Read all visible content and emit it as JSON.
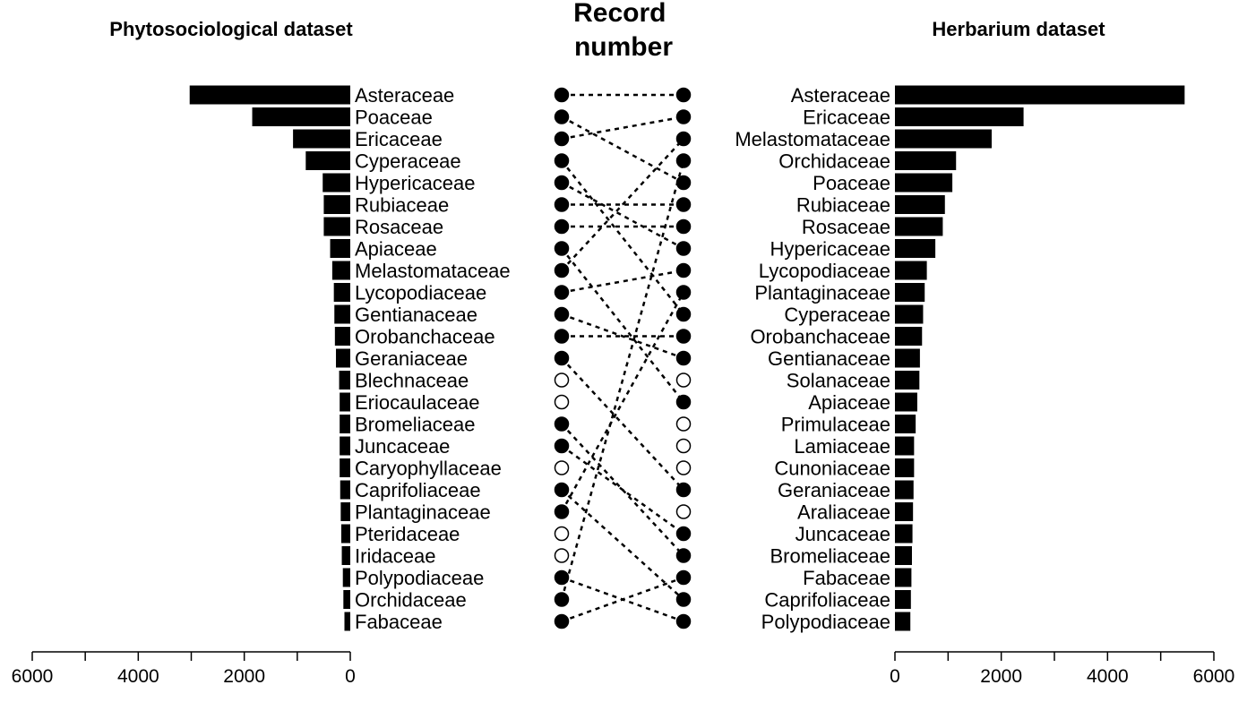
{
  "chart_data": [
    {
      "type": "bar",
      "orientation": "horizontal",
      "direction": "leftward",
      "title": "Phytosociological dataset",
      "xlim": [
        0,
        6000
      ],
      "ticks": [
        6000,
        4000,
        2000,
        0
      ],
      "categories": [
        "Asteraceae",
        "Poaceae",
        "Ericaceae",
        "Cyperaceae",
        "Hypericaceae",
        "Rubiaceae",
        "Rosaceae",
        "Apiaceae",
        "Melastomataceae",
        "Lycopodiaceae",
        "Gentianaceae",
        "Orobanchaceae",
        "Geraniaceae",
        "Blechnaceae",
        "Eriocaulaceae",
        "Bromeliaceae",
        "Juncaceae",
        "Caryophyllaceae",
        "Caprifoliaceae",
        "Plantaginaceae",
        "Pteridaceae",
        "Iridaceae",
        "Polypodiaceae",
        "Orchidaceae",
        "Fabaceae"
      ],
      "values": [
        3030,
        1850,
        1080,
        840,
        520,
        500,
        500,
        380,
        340,
        310,
        300,
        290,
        270,
        210,
        200,
        200,
        200,
        200,
        190,
        180,
        170,
        160,
        140,
        130,
        110
      ]
    },
    {
      "type": "bar",
      "orientation": "horizontal",
      "direction": "rightward",
      "title": "Herbarium dataset",
      "xlim": [
        0,
        6000
      ],
      "ticks": [
        0,
        2000,
        4000,
        6000
      ],
      "categories": [
        "Asteraceae",
        "Ericaceae",
        "Melastomataceae",
        "Orchidaceae",
        "Poaceae",
        "Rubiaceae",
        "Rosaceae",
        "Hypericaceae",
        "Lycopodiaceae",
        "Plantaginaceae",
        "Cyperaceae",
        "Orobanchaceae",
        "Gentianaceae",
        "Solanaceae",
        "Apiaceae",
        "Primulaceae",
        "Lamiaceae",
        "Cunoniaceae",
        "Geraniaceae",
        "Araliaceae",
        "Juncaceae",
        "Bromeliaceae",
        "Fabaceae",
        "Caprifoliaceae",
        "Polypodiaceae"
      ],
      "values": [
        5450,
        2420,
        1820,
        1150,
        1080,
        940,
        900,
        760,
        600,
        560,
        530,
        510,
        470,
        460,
        420,
        390,
        360,
        360,
        350,
        340,
        330,
        320,
        310,
        300,
        290
      ]
    },
    {
      "type": "rank-comparison",
      "title": "Record\nnumber",
      "left_markers": [
        true,
        true,
        true,
        true,
        true,
        true,
        true,
        true,
        true,
        true,
        true,
        true,
        true,
        false,
        false,
        true,
        true,
        false,
        true,
        true,
        false,
        false,
        true,
        true,
        true
      ],
      "right_markers": [
        true,
        true,
        true,
        true,
        true,
        true,
        true,
        true,
        true,
        true,
        true,
        true,
        true,
        false,
        true,
        false,
        false,
        false,
        true,
        false,
        true,
        true,
        true,
        true,
        true
      ],
      "links": [
        [
          0,
          0
        ],
        [
          1,
          4
        ],
        [
          2,
          1
        ],
        [
          3,
          10
        ],
        [
          4,
          7
        ],
        [
          5,
          5
        ],
        [
          6,
          6
        ],
        [
          7,
          14
        ],
        [
          8,
          2
        ],
        [
          9,
          8
        ],
        [
          10,
          12
        ],
        [
          11,
          11
        ],
        [
          12,
          18
        ],
        [
          15,
          21
        ],
        [
          16,
          20
        ],
        [
          18,
          23
        ],
        [
          19,
          9
        ],
        [
          22,
          24
        ],
        [
          23,
          3
        ],
        [
          24,
          22
        ]
      ]
    }
  ]
}
